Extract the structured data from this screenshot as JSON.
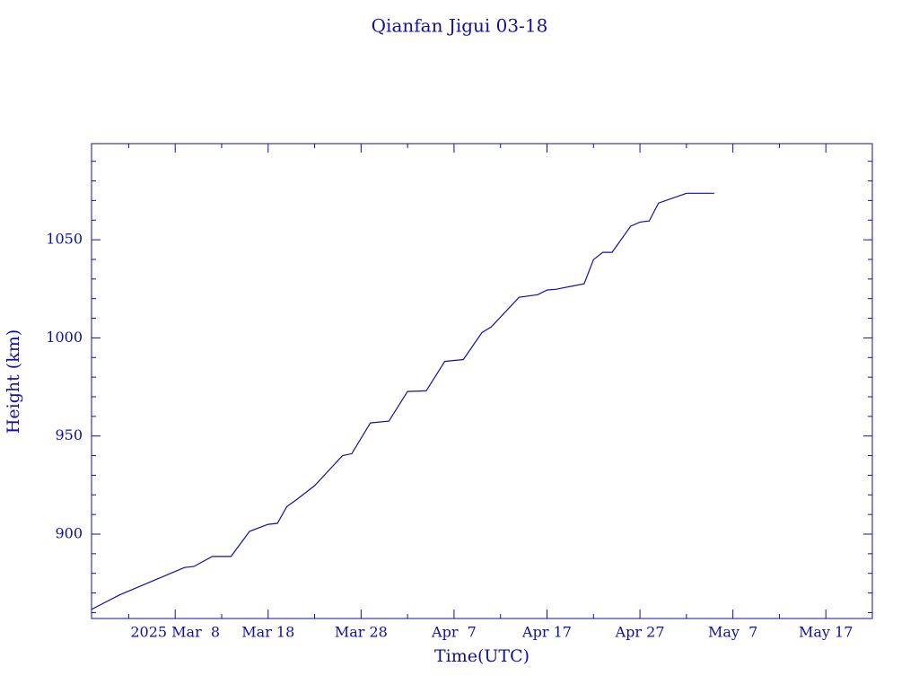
{
  "chart_data": {
    "type": "line",
    "title": "Qianfan Jigui 03-18",
    "x_label": "Time(UTC)",
    "y_label": "Height (km)",
    "color": "#1010a0",
    "series": [
      {
        "name": null,
        "color": "#1010a0",
        "x": [
          "2025-02-27",
          "2025-03-02",
          "2025-03-06",
          "2025-03-09",
          "2025-03-10",
          "2025-03-12",
          "2025-03-14",
          "2025-03-16",
          "2025-03-18",
          "2025-03-19",
          "2025-03-20",
          "2025-03-21",
          "2025-03-23",
          "2025-03-26",
          "2025-03-27",
          "2025-03-29",
          "2025-03-31",
          "2025-04-02",
          "2025-04-04",
          "2025-04-06",
          "2025-04-08",
          "2025-04-10",
          "2025-04-11",
          "2025-04-14",
          "2025-04-16",
          "2025-04-17",
          "2025-04-18",
          "2025-04-21",
          "2025-04-22",
          "2025-04-23",
          "2025-04-24",
          "2025-04-26",
          "2025-04-27",
          "2025-04-28",
          "2025-04-29",
          "2025-05-02",
          "2025-05-05"
        ],
        "values": [
          861.6,
          869,
          877,
          883,
          883.5,
          888.6,
          888.6,
          901.4,
          905,
          905.5,
          914,
          917.4,
          924.7,
          940,
          941,
          956.7,
          957.6,
          972.7,
          973,
          988,
          989,
          1002.7,
          1005.6,
          1020.7,
          1022,
          1024.4,
          1024.8,
          1027.6,
          1039.9,
          1043.6,
          1043.6,
          1056.9,
          1059,
          1059.6,
          1068.7,
          1073.7,
          1073.7
        ]
      }
    ],
    "xlim": [
      "2025-02-27",
      "2025-05-22"
    ],
    "xticks": [
      {
        "value": "2025-03-08",
        "label": "2025 Mar  8"
      },
      {
        "value": "2025-03-18",
        "label": "Mar 18"
      },
      {
        "value": "2025-03-28",
        "label": "Mar 28"
      },
      {
        "value": "2025-04-07",
        "label": "Apr  7"
      },
      {
        "value": "2025-04-17",
        "label": "Apr 17"
      },
      {
        "value": "2025-04-27",
        "label": "Apr 27"
      },
      {
        "value": "2025-05-07",
        "label": "May  7"
      },
      {
        "value": "2025-05-17",
        "label": "May 17"
      }
    ],
    "xticks_minor": [
      "2025-03-03",
      "2025-03-13",
      "2025-03-23",
      "2025-04-02",
      "2025-04-12",
      "2025-04-22",
      "2025-05-02",
      "2025-05-12"
    ],
    "ylim": [
      857,
      1099
    ],
    "yticks": [
      900,
      950,
      1000,
      1050
    ],
    "yticks_minor": [
      860,
      870,
      880,
      890,
      910,
      920,
      930,
      940,
      960,
      970,
      980,
      990,
      1010,
      1020,
      1030,
      1040,
      1060,
      1070,
      1080,
      1090
    ]
  }
}
